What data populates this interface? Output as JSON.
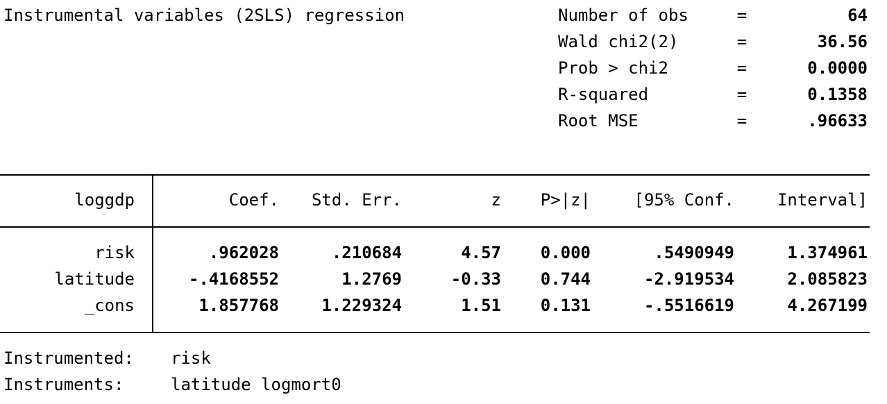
{
  "header": {
    "title": "Instrumental variables (2SLS) regression",
    "stats": [
      {
        "label": "Number of obs",
        "eq": "=",
        "value": "64"
      },
      {
        "label": "Wald chi2(2)",
        "eq": "=",
        "value": "36.56"
      },
      {
        "label": "Prob > chi2",
        "eq": "=",
        "value": "0.0000"
      },
      {
        "label": "R-squared",
        "eq": "=",
        "value": "0.1358"
      },
      {
        "label": "Root MSE",
        "eq": "=",
        "value": ".96633"
      }
    ]
  },
  "table": {
    "dep_var": "loggdp",
    "columns": [
      "Coef.",
      "Std. Err.",
      "z",
      "P>|z|",
      "[95% Conf.",
      "Interval]"
    ],
    "rows": [
      {
        "var": "risk",
        "coef": ".962028",
        "se": ".210684",
        "z": "4.57",
        "p": "0.000",
        "lo": ".5490949",
        "hi": "1.374961"
      },
      {
        "var": "latitude",
        "coef": "-.4168552",
        "se": "1.2769",
        "z": "-0.33",
        "p": "0.744",
        "lo": "-2.919534",
        "hi": "2.085823"
      },
      {
        "var": "_cons",
        "coef": "1.857768",
        "se": "1.229324",
        "z": "1.51",
        "p": "0.131",
        "lo": "-.5516619",
        "hi": "4.267199"
      }
    ]
  },
  "footer": {
    "instrumented_label": "Instrumented:",
    "instrumented_value": "risk",
    "instruments_label": "Instruments:",
    "instruments_value": "latitude logmort0"
  }
}
